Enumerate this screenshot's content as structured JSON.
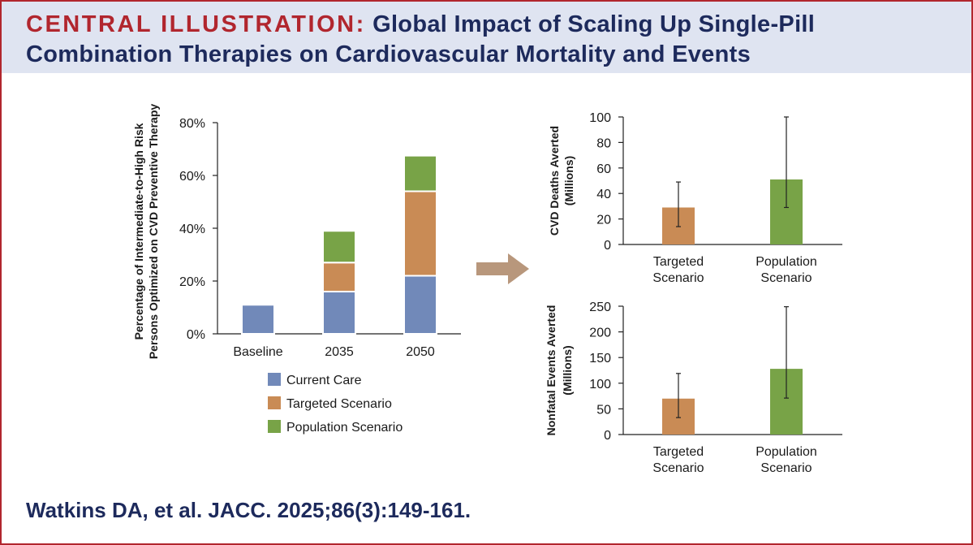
{
  "header": {
    "tag": "CENTRAL ILLUSTRATION:",
    "title_line1": "Global Impact of Scaling Up Single-Pill",
    "title_line2": "Combination Therapies on Cardiovascular Mortality and Events"
  },
  "citation": "Watkins DA, et al. JACC. 2025;86(3):149-161.",
  "colors": {
    "current_care": "#7189b9",
    "targeted": "#c98b55",
    "population": "#78a347",
    "arrow": "#b8977c",
    "header_bg": "#dfe4f1",
    "border": "#b1262e",
    "title": "#1d2a5c"
  },
  "icons": [
    "right-arrow-icon"
  ],
  "chart_data": [
    {
      "type": "bar",
      "stacked": true,
      "ylabel_line1": "Percentage of Intermediate-to-High Risk",
      "ylabel_line2": "Persons Optimized on CVD Preventive Therapy",
      "categories": [
        "Baseline",
        "2035",
        "2050"
      ],
      "ylim": [
        0,
        80
      ],
      "yticks": [
        0,
        20,
        40,
        60,
        80
      ],
      "ytick_labels": [
        "0%",
        "20%",
        "40%",
        "60%",
        "80%"
      ],
      "series": [
        {
          "name": "Current Care",
          "color": "#7189b9",
          "values": [
            11,
            16,
            22
          ]
        },
        {
          "name": "Targeted Scenario",
          "color": "#c98b55",
          "values": [
            0,
            11,
            32
          ]
        },
        {
          "name": "Population Scenario",
          "color": "#78a347",
          "values": [
            0,
            12,
            13.5
          ]
        }
      ],
      "legend": [
        "Current Care",
        "Targeted Scenario",
        "Population Scenario"
      ]
    },
    {
      "type": "bar",
      "ylabel_line1": "CVD Deaths Averted",
      "ylabel_line2": "(Millions)",
      "categories": [
        [
          "Targeted",
          "Scenario"
        ],
        [
          "Population",
          "Scenario"
        ]
      ],
      "values": [
        29,
        51
      ],
      "error_low": [
        14,
        29
      ],
      "error_high": [
        49,
        100
      ],
      "colors": [
        "#c98b55",
        "#78a347"
      ],
      "ylim": [
        0,
        100
      ],
      "yticks": [
        0,
        20,
        40,
        60,
        80,
        100
      ],
      "ytick_labels": [
        "0",
        "20",
        "40",
        "60",
        "80",
        "100"
      ]
    },
    {
      "type": "bar",
      "ylabel_line1": "Nonfatal Events Averted",
      "ylabel_line2": "(Millions)",
      "categories": [
        [
          "Targeted",
          "Scenario"
        ],
        [
          "Population",
          "Scenario"
        ]
      ],
      "values": [
        70,
        128
      ],
      "error_low": [
        33,
        71
      ],
      "error_high": [
        119,
        249
      ],
      "colors": [
        "#c98b55",
        "#78a347"
      ],
      "ylim": [
        0,
        250
      ],
      "yticks": [
        0,
        50,
        100,
        150,
        200,
        250
      ],
      "ytick_labels": [
        "0",
        "50",
        "100",
        "150",
        "200",
        "250"
      ]
    }
  ]
}
